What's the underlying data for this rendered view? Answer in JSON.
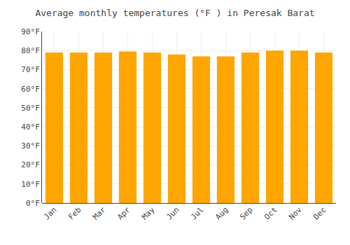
{
  "chart_data": {
    "type": "bar",
    "title": "Average monthly temperatures (°F ) in Peresak Barat",
    "categories": [
      "Jan",
      "Feb",
      "Mar",
      "Apr",
      "May",
      "Jun",
      "Jul",
      "Aug",
      "Sep",
      "Oct",
      "Nov",
      "Dec"
    ],
    "values": [
      79,
      79,
      79,
      79.5,
      79,
      78,
      77,
      77,
      79,
      80,
      80,
      79
    ],
    "color": "#FFA500",
    "ylim": [
      0,
      90
    ],
    "yticks": [
      {
        "value": 0,
        "label": "0°F"
      },
      {
        "value": 10,
        "label": "10°F"
      },
      {
        "value": 20,
        "label": "20°F"
      },
      {
        "value": 30,
        "label": "30°F"
      },
      {
        "value": 40,
        "label": "40°F"
      },
      {
        "value": 50,
        "label": "50°F"
      },
      {
        "value": 60,
        "label": "60°F"
      },
      {
        "value": 70,
        "label": "70°F"
      },
      {
        "value": 80,
        "label": "80°F"
      },
      {
        "value": 90,
        "label": "90°F"
      }
    ],
    "grid": true
  }
}
